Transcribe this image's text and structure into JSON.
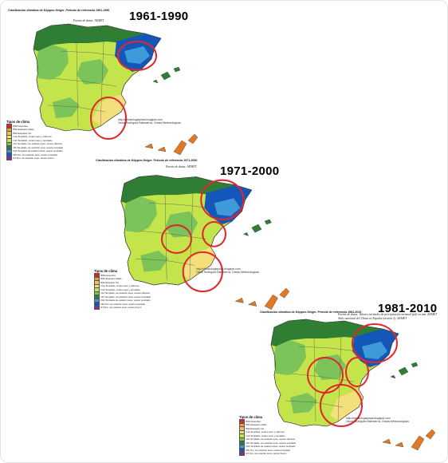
{
  "colors": {
    "ocean": "#ffffff",
    "arid_desert": "#d42a1f",
    "arid_steppe": "#e8a23a",
    "mediterranean_hot": "#f3e07c",
    "mediterranean_warm": "#c3e44a",
    "mediterranean_cool": "#7cc45a",
    "oceanic": "#2f7e34",
    "highland": "#1557b8",
    "humid_subtropical": "#3e9ad8",
    "alpine": "#8a2b92",
    "canary_desert": "#e07826",
    "circle": "#e2262b",
    "border": "#3a3a3a"
  },
  "panels": [
    {
      "period": "1961-1990",
      "title": "Clasificación climática de Köppen-Geiger. Periodo de referencia 1961-1990",
      "source": "Fuente de datos: AEMET",
      "credit_lines": [
        "http://climatologiaymas.blogspot.com",
        "Oscar Rodriguez Ballesteros, Ondas Meteorológicas"
      ],
      "legend_title": "Tipos de clima"
    },
    {
      "period": "1971-2000",
      "title": "Clasificación climática de Köppen-Geiger. Periodo de referencia 1971-2000",
      "source": "Fuente de datos: AEMET",
      "credit_lines": [
        "http://climatologiaymas.blogspot.com",
        "Oscar Rodriguez Ballesteros, Ondas Meteorológicas"
      ],
      "legend_title": "Tipos de clima"
    },
    {
      "period": "1981-2010",
      "title": "Clasificación climática de Köppen-Geiger. Periodo de referencia 1981-2010",
      "source": "Fuente de datos: Valores normales de precipitación mensual (pd) en mm, AEMET",
      "source2": "Atlas nacional del Clima en España (versión 2), AEMET",
      "credit_lines": [
        "http://climatologiaymas.blogspot.com",
        "Oscar Rodriguez Ballesteros, Ondas Meteorológicas"
      ],
      "legend_title": "Tipos de clima"
    }
  ],
  "legend": [
    {
      "code": "BWh",
      "label": "Desértico",
      "color": "#d42a1f"
    },
    {
      "code": "BSh",
      "label": "Estepario cálido",
      "color": "#e8a23a"
    },
    {
      "code": "BSk",
      "label": "Estepario frío",
      "color": "#f0c060"
    },
    {
      "code": "Csa",
      "label": "Templado, verano seco y caluroso",
      "color": "#f3e07c"
    },
    {
      "code": "Csb",
      "label": "Templado, verano seco y templado",
      "color": "#c3e44a"
    },
    {
      "code": "Cfa",
      "label": "Templado, sin estación seca, verano caluroso",
      "color": "#7cc45a"
    },
    {
      "code": "Cfb",
      "label": "Templado, sin estación seca, verano templado",
      "color": "#2f7e34"
    },
    {
      "code": "Dsb",
      "label": "Templado de estación seca, verano templado",
      "color": "#3e9ad8"
    },
    {
      "code": "Dfb",
      "label": "Frío, sin estación seca, verano templado",
      "color": "#1557b8"
    },
    {
      "code": "ET",
      "label": "Frío, sin estación seca, verano fresco",
      "color": "#8a2b92"
    }
  ]
}
